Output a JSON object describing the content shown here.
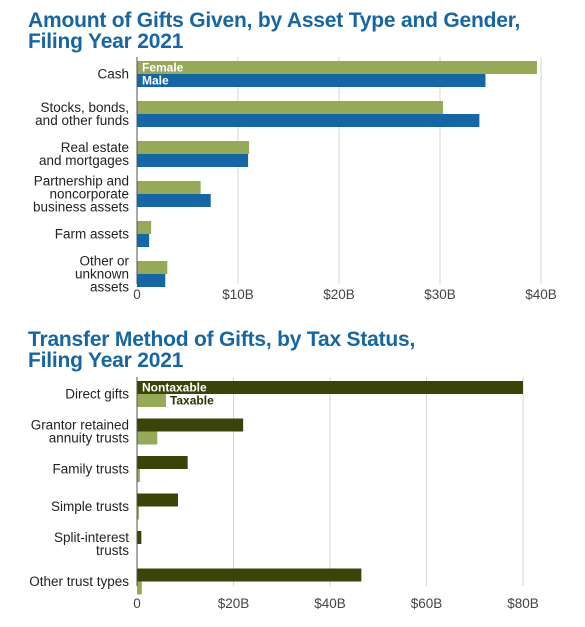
{
  "chart_data": [
    {
      "type": "bar",
      "orientation": "horizontal",
      "title": [
        "Amount of Gifts Given, by Asset Type and Gender,",
        "Filing Year 2021"
      ],
      "categories": [
        [
          "Cash"
        ],
        [
          "Stocks, bonds,",
          "and other funds"
        ],
        [
          "Real estate",
          "and mortgages"
        ],
        [
          "Partnership and",
          "noncorporate",
          "business assets"
        ],
        [
          "Farm assets"
        ],
        [
          "Other or",
          "unknown",
          "assets"
        ]
      ],
      "series": [
        {
          "name": "Female",
          "color": "#95a957",
          "values": [
            39.6,
            30.3,
            11.1,
            6.3,
            1.4,
            3.0
          ]
        },
        {
          "name": "Male",
          "color": "#1566a7",
          "values": [
            34.5,
            33.9,
            11.0,
            7.3,
            1.2,
            2.8
          ]
        }
      ],
      "xlim": [
        0,
        40
      ],
      "xticks": [
        0,
        10,
        20,
        30,
        40
      ],
      "xticklabels": [
        "0",
        "$10B",
        "$20B",
        "$30B",
        "$40B"
      ],
      "grid": true,
      "legend": "inside-first-bars"
    },
    {
      "type": "bar",
      "orientation": "horizontal",
      "title": [
        "Transfer Method of Gifts, by Tax Status,",
        "Filing Year 2021"
      ],
      "categories": [
        [
          "Direct gifts"
        ],
        [
          "Grantor retained",
          "annuity trusts"
        ],
        [
          "Family trusts"
        ],
        [
          "Simple trusts"
        ],
        [
          "Split-interest",
          "trusts"
        ],
        [
          "Other trust types"
        ]
      ],
      "series": [
        {
          "name": "Nontaxable",
          "color": "#3a4408",
          "values": [
            80.0,
            22.0,
            10.5,
            8.5,
            0.9,
            46.5
          ]
        },
        {
          "name": "Taxable",
          "color": "#95a957",
          "values": [
            6.0,
            4.2,
            0.6,
            0.4,
            0.1,
            1.0
          ]
        }
      ],
      "xlim": [
        0,
        80
      ],
      "xticks": [
        0,
        20,
        40,
        60,
        80
      ],
      "xticklabels": [
        "0",
        "$20B",
        "$40B",
        "$60B",
        "$80B"
      ],
      "grid": true,
      "legend": "inside-first-bars"
    }
  ]
}
